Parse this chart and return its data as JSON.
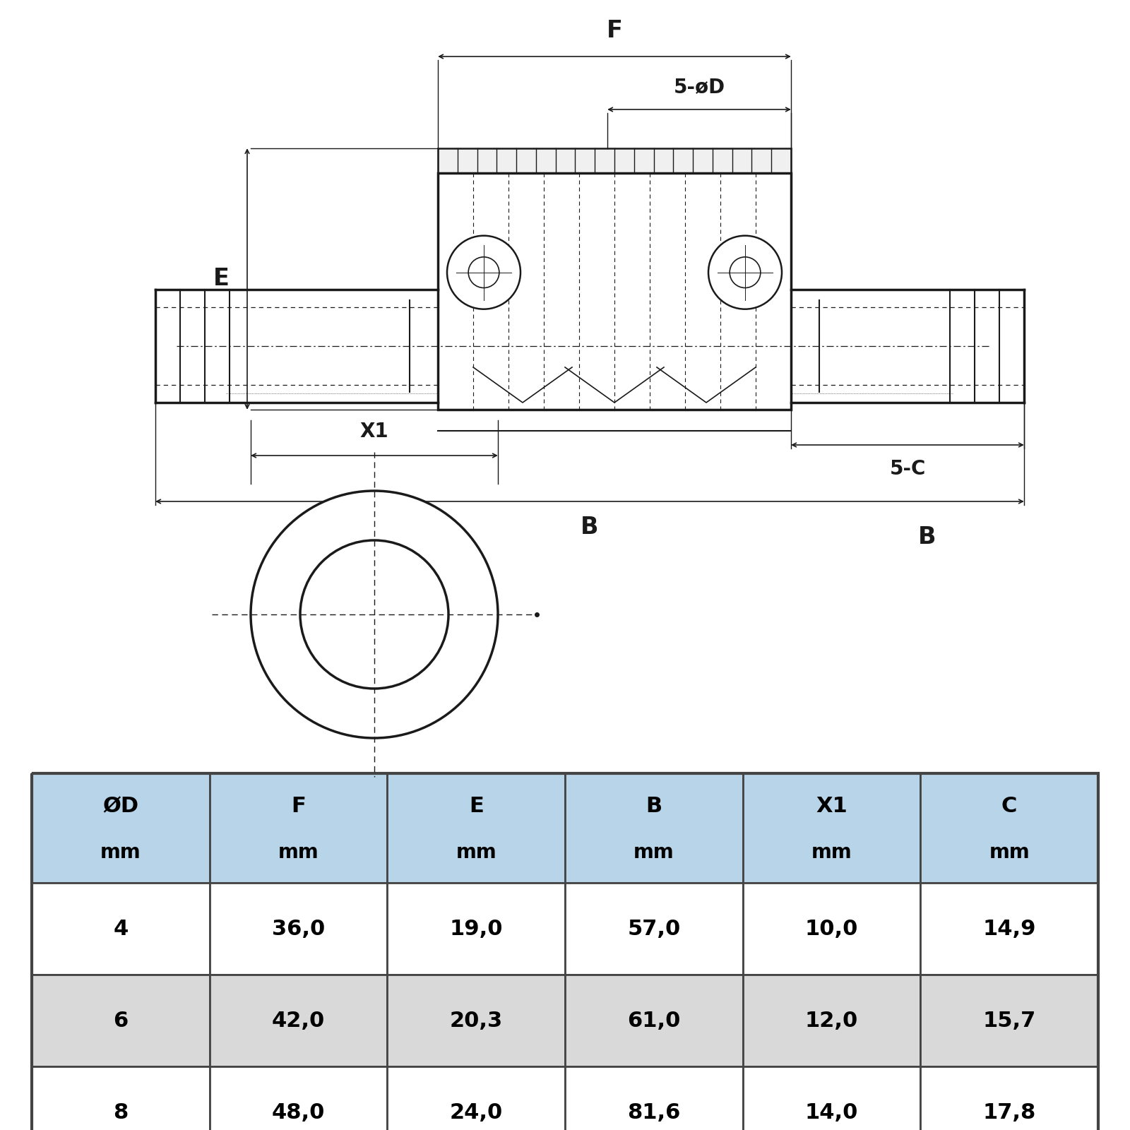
{
  "table_headers": [
    "ØD\nmm",
    "F\nmm",
    "E\nmm",
    "B\nmm",
    "X1\nmm",
    "C\nmm"
  ],
  "table_rows": [
    [
      "4",
      "36,0",
      "19,0",
      "57,0",
      "10,0",
      "14,9"
    ],
    [
      "6",
      "42,0",
      "20,3",
      "61,0",
      "12,0",
      "15,7"
    ],
    [
      "8",
      "48,0",
      "24,0",
      "81,6",
      "14,0",
      "17,8"
    ]
  ],
  "header_bg": "#b8d4e8",
  "row_bg_even": "#ffffff",
  "row_bg_odd": "#d9d9d9",
  "border_color": "#444444",
  "text_color": "#000000",
  "bg_color": "#ffffff",
  "dim_labels": {
    "F": "F",
    "5phiD": "5-øD",
    "E": "E",
    "5C": "5-C",
    "B": "B",
    "X1": "X1"
  }
}
